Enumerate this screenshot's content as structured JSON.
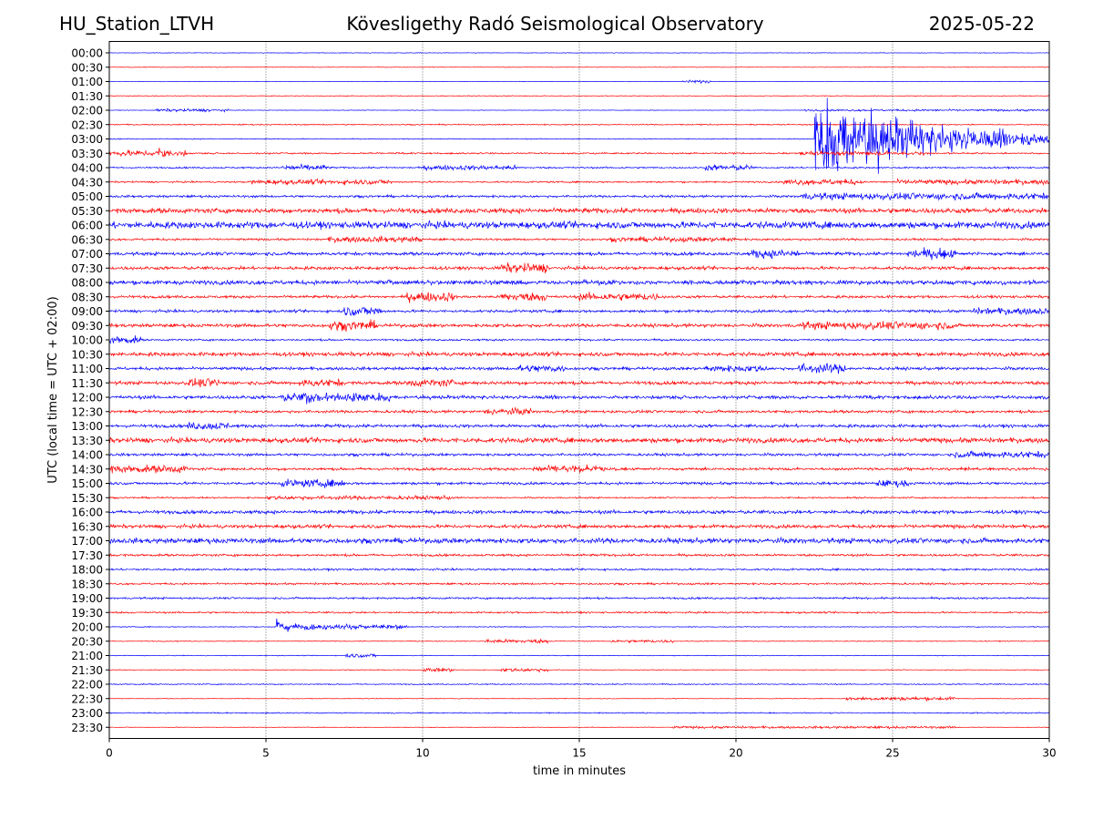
{
  "header": {
    "station": "HU_Station_LTVH",
    "observatory": "Kövesligethy Radó Seismological Observatory",
    "date": "2025-05-22"
  },
  "chart_data": {
    "type": "line",
    "xlabel": "time in minutes",
    "ylabel": "UTC (local time = UTC + 02:00)",
    "xlim": [
      0,
      30
    ],
    "xticks": [
      0,
      5,
      10,
      15,
      20,
      25,
      30
    ],
    "grid": "vertical dotted at x ticks",
    "colors": {
      "even_rows": "#0000ff",
      "odd_rows": "#ff0000"
    },
    "rows": [
      {
        "label": "00:00",
        "base": 0.3,
        "noise": [
          [
            0,
            30,
            0.3
          ]
        ],
        "events": []
      },
      {
        "label": "00:30",
        "base": 0.3,
        "noise": [
          [
            0,
            30,
            0.3
          ]
        ],
        "events": [
          {
            "x": 29.6,
            "amp": 1.5,
            "dur": 0.1
          }
        ]
      },
      {
        "label": "01:00",
        "base": 0.4,
        "noise": [
          [
            18.3,
            19.2,
            1.5
          ]
        ],
        "events": []
      },
      {
        "label": "01:30",
        "base": 0.4,
        "noise": [
          [
            0,
            30,
            0.4
          ]
        ],
        "events": [
          {
            "x": 1.8,
            "amp": 1,
            "dur": 0.1
          },
          {
            "x": 23.5,
            "amp": 1,
            "dur": 0.1
          }
        ]
      },
      {
        "label": "02:00",
        "base": 0.5,
        "noise": [
          [
            1.5,
            3.8,
            1.5
          ],
          [
            22.2,
            30,
            1
          ]
        ],
        "events": []
      },
      {
        "label": "02:30",
        "base": 0.6,
        "noise": [
          [
            0,
            30,
            0.6
          ]
        ],
        "events": [
          {
            "x": 18.2,
            "amp": 2.5,
            "dur": 0.2
          }
        ]
      },
      {
        "label": "03:00",
        "base": 0.5,
        "noise": [
          [
            0,
            22.4,
            0.5
          ]
        ],
        "events": [
          {
            "x": 22.5,
            "amp": 45,
            "dur": 8
          }
        ]
      },
      {
        "label": "03:30",
        "base": 1.5,
        "noise": [
          [
            0,
            2.5,
            3
          ],
          [
            22,
            26,
            2
          ]
        ],
        "events": [
          {
            "x": 1.55,
            "amp": 12,
            "dur": 0.4
          }
        ]
      },
      {
        "label": "04:00",
        "base": 1.5,
        "noise": [
          [
            5.5,
            7,
            3
          ],
          [
            10,
            13,
            2.5
          ],
          [
            19,
            20.5,
            3
          ]
        ],
        "events": []
      },
      {
        "label": "04:30",
        "base": 1.5,
        "noise": [
          [
            4.5,
            9,
            2.5
          ],
          [
            21.5,
            24,
            3
          ],
          [
            25,
            30,
            2.5
          ]
        ],
        "events": []
      },
      {
        "label": "05:00",
        "base": 2.2,
        "noise": [
          [
            22,
            30,
            3.5
          ]
        ],
        "events": []
      },
      {
        "label": "05:30",
        "base": 2.5,
        "noise": [
          [
            0,
            30,
            2.5
          ]
        ],
        "events": []
      },
      {
        "label": "06:00",
        "base": 2.8,
        "noise": [
          [
            0,
            30,
            3.5
          ]
        ],
        "events": []
      },
      {
        "label": "06:30",
        "base": 2,
        "noise": [
          [
            7,
            10,
            3
          ],
          [
            16,
            20,
            2.5
          ]
        ],
        "events": []
      },
      {
        "label": "07:00",
        "base": 3,
        "noise": [
          [
            20.5,
            22,
            4.5
          ],
          [
            25.5,
            27,
            5
          ]
        ],
        "events": [
          {
            "x": 26.4,
            "amp": 7,
            "dur": 0.4
          }
        ]
      },
      {
        "label": "07:30",
        "base": 3,
        "noise": [
          [
            12.5,
            14,
            5
          ]
        ],
        "events": []
      },
      {
        "label": "08:00",
        "base": 2.2,
        "noise": [
          [
            0,
            30,
            2.2
          ]
        ],
        "events": [
          {
            "x": 8.9,
            "amp": 5,
            "dur": 0.2
          }
        ]
      },
      {
        "label": "08:30",
        "base": 2.5,
        "noise": [
          [
            9.5,
            11,
            5
          ],
          [
            12.5,
            14,
            4.5
          ],
          [
            15,
            17.5,
            4
          ]
        ],
        "events": []
      },
      {
        "label": "09:00",
        "base": 2.5,
        "noise": [
          [
            7.5,
            8.7,
            5
          ],
          [
            27.5,
            30,
            3.5
          ]
        ],
        "events": []
      },
      {
        "label": "09:30",
        "base": 3.2,
        "noise": [
          [
            7,
            8.5,
            5
          ],
          [
            22,
            27,
            4
          ]
        ],
        "events": []
      },
      {
        "label": "10:00",
        "base": 1.8,
        "noise": [
          [
            0,
            1,
            4
          ]
        ],
        "events": []
      },
      {
        "label": "10:30",
        "base": 2,
        "noise": [
          [
            0,
            30,
            2
          ]
        ],
        "events": []
      },
      {
        "label": "11:00",
        "base": 2.8,
        "noise": [
          [
            13,
            14.5,
            4
          ],
          [
            19,
            21,
            3.5
          ],
          [
            22,
            23.5,
            5
          ]
        ],
        "events": []
      },
      {
        "label": "11:30",
        "base": 3.2,
        "noise": [
          [
            2.5,
            3.5,
            4.5
          ],
          [
            6,
            7.5,
            4
          ],
          [
            9.5,
            11,
            4
          ]
        ],
        "events": []
      },
      {
        "label": "12:00",
        "base": 3.2,
        "noise": [
          [
            5.5,
            9,
            4.5
          ]
        ],
        "events": [
          {
            "x": 6.2,
            "amp": 7,
            "dur": 0.6
          }
        ]
      },
      {
        "label": "12:30",
        "base": 2.6,
        "noise": [
          [
            12,
            13.5,
            3.5
          ]
        ],
        "events": []
      },
      {
        "label": "13:00",
        "base": 3,
        "noise": [
          [
            2.5,
            3.8,
            4
          ]
        ],
        "events": []
      },
      {
        "label": "13:30",
        "base": 2.5,
        "noise": [
          [
            0,
            30,
            2.5
          ]
        ],
        "events": []
      },
      {
        "label": "14:00",
        "base": 2.5,
        "noise": [
          [
            27,
            30,
            3.5
          ]
        ],
        "events": []
      },
      {
        "label": "14:30",
        "base": 2.5,
        "noise": [
          [
            0,
            2.5,
            4
          ],
          [
            13.5,
            16,
            3.5
          ]
        ],
        "events": [
          {
            "x": 14.3,
            "amp": 5,
            "dur": 0.2
          }
        ]
      },
      {
        "label": "15:00",
        "base": 2.5,
        "noise": [
          [
            5.5,
            7.5,
            4
          ],
          [
            24.5,
            25.5,
            3.5
          ]
        ],
        "events": []
      },
      {
        "label": "15:30",
        "base": 1.5,
        "noise": [
          [
            5,
            11,
            2
          ]
        ],
        "events": []
      },
      {
        "label": "16:00",
        "base": 1.8,
        "noise": [
          [
            0,
            30,
            1.8
          ]
        ],
        "events": []
      },
      {
        "label": "16:30",
        "base": 1.8,
        "noise": [
          [
            0,
            30,
            1.8
          ]
        ],
        "events": []
      },
      {
        "label": "17:00",
        "base": 2.6,
        "noise": [
          [
            0,
            30,
            2.6
          ]
        ],
        "events": []
      },
      {
        "label": "17:30",
        "base": 1.2,
        "noise": [
          [
            0,
            30,
            1.2
          ]
        ],
        "events": []
      },
      {
        "label": "18:00",
        "base": 1,
        "noise": [
          [
            0,
            30,
            1
          ]
        ],
        "events": []
      },
      {
        "label": "18:30",
        "base": 1,
        "noise": [
          [
            0,
            30,
            1
          ]
        ],
        "events": []
      },
      {
        "label": "19:00",
        "base": 1,
        "noise": [
          [
            0,
            30,
            1
          ]
        ],
        "events": []
      },
      {
        "label": "19:30",
        "base": 0.9,
        "noise": [
          [
            0,
            30,
            0.9
          ]
        ],
        "events": []
      },
      {
        "label": "20:00",
        "base": 0.8,
        "noise": [
          [
            5.3,
            9.5,
            2.5
          ]
        ],
        "events": [
          {
            "x": 5.3,
            "amp": 8,
            "dur": 1.2
          }
        ]
      },
      {
        "label": "20:30",
        "base": 0.8,
        "noise": [
          [
            12,
            14,
            2
          ],
          [
            16,
            18,
            1.5
          ]
        ],
        "events": []
      },
      {
        "label": "21:00",
        "base": 0.7,
        "noise": [
          [
            7.5,
            8.5,
            2
          ]
        ],
        "events": []
      },
      {
        "label": "21:30",
        "base": 0.7,
        "noise": [
          [
            10,
            11,
            2
          ],
          [
            12.5,
            14,
            1.8
          ]
        ],
        "events": []
      },
      {
        "label": "22:00",
        "base": 0.6,
        "noise": [
          [
            0,
            30,
            0.6
          ]
        ],
        "events": []
      },
      {
        "label": "22:30",
        "base": 0.6,
        "noise": [
          [
            23.5,
            27,
            1.8
          ]
        ],
        "events": []
      },
      {
        "label": "23:00",
        "base": 0.6,
        "noise": [
          [
            0,
            30,
            0.6
          ]
        ],
        "events": [
          {
            "x": 2.4,
            "amp": 2.5,
            "dur": 0.1
          },
          {
            "x": 15.7,
            "amp": 2,
            "dur": 0.1
          },
          {
            "x": 18,
            "amp": 2,
            "dur": 0.1
          }
        ]
      },
      {
        "label": "23:30",
        "base": 0.6,
        "noise": [
          [
            18,
            27,
            1.2
          ]
        ],
        "events": []
      }
    ]
  }
}
